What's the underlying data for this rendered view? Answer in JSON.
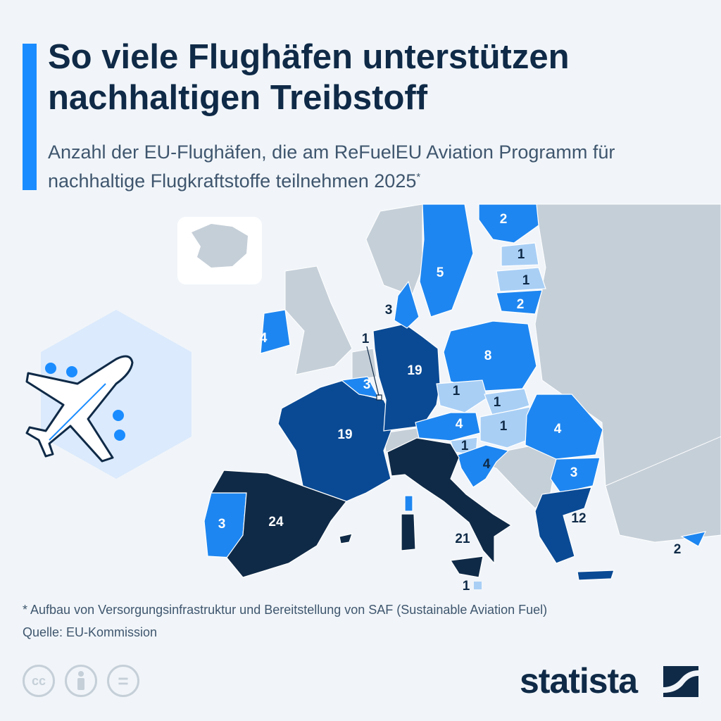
{
  "header": {
    "title": "So viele Flughäfen unterstützen nachhaltigen Treibstoff",
    "subtitle": "Anzahl der EU-Flughäfen, die am ReFuelEU Aviation Programm für nachhaltige Flugkraftstoffe teilnehmen 2025",
    "subtitle_mark": "*"
  },
  "colors": {
    "darkest": "#0f2a47",
    "dark": "#0a4a94",
    "medium": "#1e86f0",
    "light": "#a9cff5",
    "non_eu": "#c5cfd8",
    "accent": "#1a8cff"
  },
  "chart_data": {
    "type": "choropleth",
    "title": "So viele Flughäfen unterstützen nachhaltigen Treibstoff",
    "unit": "Anzahl Flughäfen",
    "regions": [
      {
        "id": "spain",
        "value": "24"
      },
      {
        "id": "italy",
        "value": "21"
      },
      {
        "id": "france",
        "value": "19"
      },
      {
        "id": "germany",
        "value": "19"
      },
      {
        "id": "greece",
        "value": "12"
      },
      {
        "id": "poland",
        "value": "8"
      },
      {
        "id": "sweden",
        "value": "5"
      },
      {
        "id": "ireland",
        "value": "4"
      },
      {
        "id": "austria",
        "value": "4"
      },
      {
        "id": "croatia",
        "value": "4"
      },
      {
        "id": "romania",
        "value": "4"
      },
      {
        "id": "portugal",
        "value": "3"
      },
      {
        "id": "belgium",
        "value": "3"
      },
      {
        "id": "denmark",
        "value": "3"
      },
      {
        "id": "bulgaria",
        "value": "3"
      },
      {
        "id": "finland",
        "value": "2"
      },
      {
        "id": "lithuania",
        "value": "2"
      },
      {
        "id": "cyprus",
        "value": "2"
      },
      {
        "id": "estonia",
        "value": "1"
      },
      {
        "id": "latvia",
        "value": "1"
      },
      {
        "id": "czechia",
        "value": "1"
      },
      {
        "id": "slovakia",
        "value": "1"
      },
      {
        "id": "hungary",
        "value": "1"
      },
      {
        "id": "slovenia",
        "value": "1"
      },
      {
        "id": "luxembourg",
        "value": "1"
      },
      {
        "id": "malta",
        "value": "1"
      }
    ]
  },
  "footer": {
    "note": "* Aufbau von Versorgungsinfrastruktur und Bereitstellung von SAF (Sustainable Aviation Fuel)",
    "source": "Quelle: EU-Kommission",
    "cc": "cc",
    "eq": "=",
    "brand": "statista"
  },
  "icons": [
    "airplane-icon",
    "cc-license-icon",
    "attribution-icon",
    "no-derivatives-icon",
    "statista-logo"
  ]
}
